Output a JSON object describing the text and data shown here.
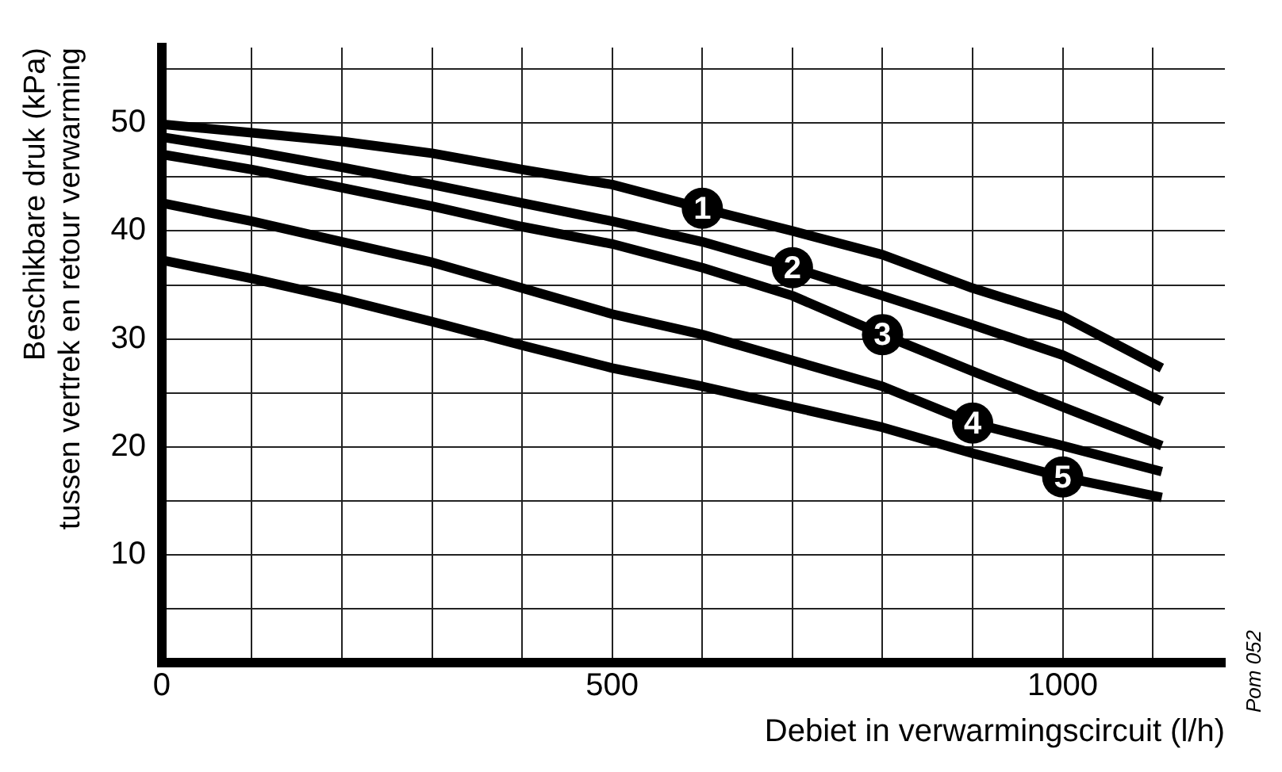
{
  "chart_data": {
    "type": "line",
    "xlabel": "Debiet in verwarmingscircuit (l/h)",
    "ylabel": "Beschikbare druk (kPa)\ntussen vertrek en retour verwarming",
    "annotations": [
      "Pom 052"
    ],
    "x": [
      0,
      100,
      200,
      300,
      400,
      500,
      600,
      700,
      800,
      900,
      1000,
      1110
    ],
    "series": [
      {
        "name": "1",
        "color": "#000000",
        "values": [
          49.9,
          49.1,
          48.3,
          47.2,
          45.7,
          44.3,
          42.1,
          40.0,
          37.8,
          34.7,
          32.1,
          27.3
        ]
      },
      {
        "name": "2",
        "color": "#000000",
        "values": [
          48.7,
          47.4,
          45.9,
          44.3,
          42.6,
          40.9,
          39.0,
          36.6,
          34.0,
          31.3,
          28.5,
          24.2
        ]
      },
      {
        "name": "3",
        "color": "#000000",
        "values": [
          47.1,
          45.7,
          44.0,
          42.3,
          40.4,
          38.8,
          36.6,
          34.0,
          30.4,
          27.0,
          23.7,
          20.1
        ]
      },
      {
        "name": "4",
        "color": "#000000",
        "values": [
          42.6,
          40.9,
          39.0,
          37.1,
          34.7,
          32.3,
          30.4,
          28.0,
          25.6,
          22.2,
          20.1,
          17.7
        ]
      },
      {
        "name": "5",
        "color": "#000000",
        "values": [
          37.3,
          35.6,
          33.7,
          31.6,
          29.4,
          27.3,
          25.6,
          23.7,
          21.8,
          19.4,
          17.2,
          15.3
        ]
      }
    ],
    "xlim": [
      0,
      1180
    ],
    "xticks": [
      0,
      {
        "value": 100,
        "label": null
      },
      {
        "value": 200,
        "label": null
      },
      {
        "value": 300,
        "label": null
      },
      {
        "value": 400,
        "label": null
      },
      500,
      {
        "value": 600,
        "label": null
      },
      {
        "value": 700,
        "label": null
      },
      {
        "value": 800,
        "label": null
      },
      {
        "value": 900,
        "label": null
      },
      1000,
      {
        "value": 1100,
        "label": null
      }
    ],
    "ylim": [
      0,
      57
    ],
    "yticks": [
      {
        "value": 0,
        "label": null
      },
      {
        "value": 5,
        "label": null
      },
      10,
      {
        "value": 15,
        "label": null
      },
      20,
      {
        "value": 25,
        "label": null
      },
      30,
      {
        "value": 35,
        "label": null
      },
      40,
      {
        "value": 45,
        "label": null
      },
      50,
      {
        "value": 55,
        "label": null
      }
    ],
    "grid": true,
    "legend": false,
    "marker": "none",
    "line_style": "solid"
  }
}
